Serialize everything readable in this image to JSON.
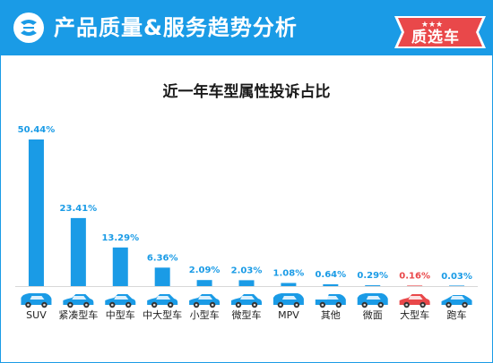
{
  "header": {
    "title": "产品质量&服务趋势分析",
    "badge": "质选车",
    "brand_color": "#1a9be6",
    "badge_color": "#e9484a"
  },
  "chart_data": {
    "type": "bar",
    "title": "近一年车型属性投诉占比",
    "categories": [
      "SUV",
      "紧凑型车",
      "中型车",
      "中大型车",
      "小型车",
      "微型车",
      "MPV",
      "其他",
      "微面",
      "大型车",
      "跑车"
    ],
    "values": [
      50.44,
      23.41,
      13.29,
      6.36,
      2.09,
      2.03,
      1.08,
      0.64,
      0.29,
      0.16,
      0.03
    ],
    "value_labels": [
      "50.44%",
      "23.41%",
      "13.29%",
      "6.36%",
      "2.09%",
      "2.03%",
      "1.08%",
      "0.64%",
      "0.29%",
      "0.16%",
      "0.03%"
    ],
    "ylim": [
      0,
      50.44
    ],
    "unit": "%",
    "bar_color": "#1a9be6",
    "highlight_index": 9,
    "highlight_color": "#e9484a",
    "grid": false,
    "legend": "none",
    "icons": [
      "suv-car-icon",
      "compact-car-icon",
      "sedan-icon",
      "sedan-icon",
      "small-car-icon",
      "micro-car-icon",
      "minivan-icon",
      "pickup-truck-icon",
      "minibus-icon",
      "large-sedan-icon",
      "sports-car-icon"
    ]
  }
}
